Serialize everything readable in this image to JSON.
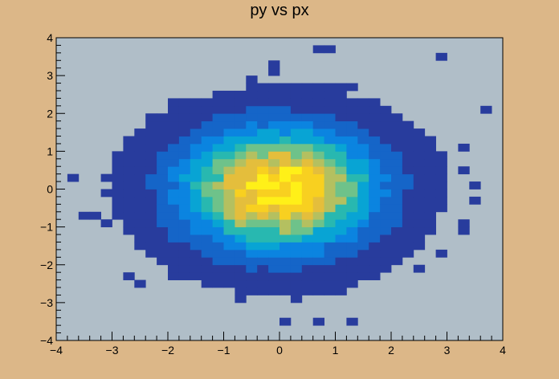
{
  "chart_data": {
    "type": "heatmap",
    "title": "py vs px",
    "xlabel": "",
    "ylabel": "",
    "xlim": [
      -4,
      4
    ],
    "ylim": [
      -4,
      4
    ],
    "bins_x": 40,
    "bins_y": 40,
    "x_ticks": [
      -4,
      -3,
      -2,
      -1,
      0,
      1,
      2,
      3,
      4
    ],
    "y_ticks": [
      -4,
      -3,
      -2,
      -1,
      0,
      1,
      2,
      3,
      4
    ],
    "x_tick_labels": [
      "−4",
      "−3",
      "−2",
      "−1",
      "0",
      "1",
      "2",
      "3",
      "4"
    ],
    "y_tick_labels": [
      "−4",
      "−3",
      "−2",
      "−1",
      "0",
      "1",
      "2",
      "3",
      "4"
    ],
    "distribution": "2D gaussian centered at (0,0), sigma ≈ 1",
    "peak_location": [
      0,
      0
    ],
    "colors": {
      "background": "#dcb788",
      "frame_fill": "#b0bec8",
      "palette": [
        "#283c9d",
        "#1565c8",
        "#0b84e0",
        "#08a4d4",
        "#28b8b0",
        "#6ec28a",
        "#b4c060",
        "#e4be3c",
        "#f8d020",
        "#fff018"
      ]
    }
  }
}
